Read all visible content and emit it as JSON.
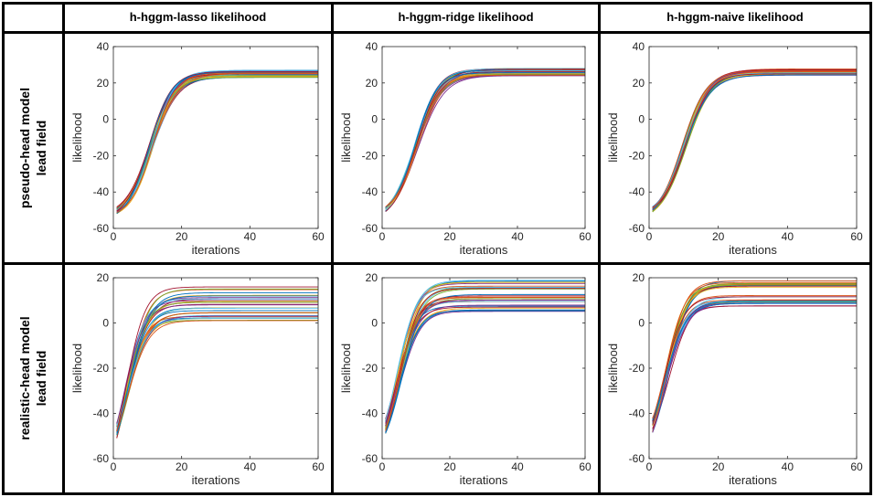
{
  "column_headers": [
    "h-hggm-lasso likelihood",
    "h-hggm-ridge likelihood",
    "h-hggm-naive likelihood"
  ],
  "row_headers": [
    {
      "line1": "pseudo-head model",
      "line2": "lead field"
    },
    {
      "line1": "realistic-head model",
      "line2": "lead field"
    }
  ],
  "series_colors": [
    "#0072BD",
    "#D95319",
    "#EDB120",
    "#7E2F8E",
    "#77AC30",
    "#4DBEEE",
    "#A2142F"
  ],
  "chart_data": [
    {
      "type": "line",
      "row": 0,
      "col": 0,
      "xlabel": "iterations",
      "ylabel": "likelihood",
      "xlim": [
        0,
        60
      ],
      "ylim": [
        -60,
        40
      ],
      "xticks": [
        "0",
        "20",
        "40",
        "60"
      ],
      "yticks": [
        "-60",
        "-40",
        "-20",
        "0",
        "20",
        "40"
      ],
      "x_start": 1,
      "x_end": 60,
      "start_range": [
        -52,
        -48
      ],
      "plateau_range": [
        23,
        27
      ],
      "rise_midpoint": 11,
      "rise_width": 3.6
    },
    {
      "type": "line",
      "row": 0,
      "col": 1,
      "xlabel": "iterations",
      "ylabel": "likelihood",
      "xlim": [
        0,
        60
      ],
      "ylim": [
        -60,
        40
      ],
      "xticks": [
        "0",
        "20",
        "40",
        "60"
      ],
      "yticks": [
        "-60",
        "-40",
        "-20",
        "0",
        "20",
        "40"
      ],
      "x_start": 1,
      "x_end": 60,
      "start_range": [
        -51,
        -48
      ],
      "plateau_range": [
        24,
        28
      ],
      "rise_midpoint": 10,
      "rise_width": 3.6
    },
    {
      "type": "line",
      "row": 0,
      "col": 2,
      "xlabel": "iterations",
      "ylabel": "likelihood",
      "xlim": [
        0,
        60
      ],
      "ylim": [
        -60,
        40
      ],
      "xticks": [
        "0",
        "20",
        "40",
        "60"
      ],
      "yticks": [
        "-60",
        "-40",
        "-20",
        "0",
        "20",
        "40"
      ],
      "x_start": 1,
      "x_end": 60,
      "start_range": [
        -51,
        -48
      ],
      "plateau_range": [
        24,
        28
      ],
      "rise_midpoint": 10,
      "rise_width": 3.6
    },
    {
      "type": "line",
      "row": 1,
      "col": 0,
      "xlabel": "iterations",
      "ylabel": "likelihood",
      "xlim": [
        0,
        60
      ],
      "ylim": [
        -60,
        20
      ],
      "xticks": [
        "0",
        "20",
        "40",
        "60"
      ],
      "yticks": [
        "-60",
        "-40",
        "-20",
        "0",
        "20"
      ],
      "x_start": 1,
      "x_end": 60,
      "start_range": [
        -51,
        -44
      ],
      "plateau_range": [
        1,
        16
      ],
      "rise_midpoint": 4,
      "rise_width": 3.0
    },
    {
      "type": "line",
      "row": 1,
      "col": 1,
      "xlabel": "iterations",
      "ylabel": "likelihood",
      "xlim": [
        0,
        60
      ],
      "ylim": [
        -60,
        20
      ],
      "xticks": [
        "0",
        "20",
        "40",
        "60"
      ],
      "yticks": [
        "-60",
        "-40",
        "-20",
        "0",
        "20"
      ],
      "x_start": 1,
      "x_end": 60,
      "start_range": [
        -49,
        -42
      ],
      "plateau_range": [
        5,
        19
      ],
      "rise_midpoint": 5,
      "rise_width": 3.0
    },
    {
      "type": "line",
      "row": 1,
      "col": 2,
      "xlabel": "iterations",
      "ylabel": "likelihood",
      "xlim": [
        0,
        60
      ],
      "ylim": [
        -60,
        20
      ],
      "xticks": [
        "0",
        "20",
        "40",
        "60"
      ],
      "yticks": [
        "-60",
        "-40",
        "-20",
        "0",
        "20"
      ],
      "x_start": 1,
      "x_end": 60,
      "start_range": [
        -49,
        -42
      ],
      "plateau_range": [
        5,
        19
      ],
      "rise_midpoint": 5,
      "rise_width": 3.0
    }
  ]
}
